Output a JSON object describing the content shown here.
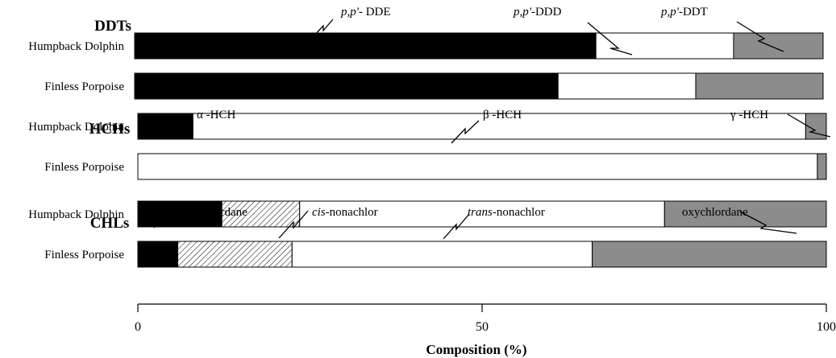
{
  "chart_data": {
    "type": "bar",
    "orientation": "horizontal",
    "stacked": true,
    "xlabel": "Composition (%)",
    "xlim": [
      0,
      100
    ],
    "xticks": [
      "0",
      "50",
      "100"
    ],
    "fill_styles": {
      "black": "#000000",
      "white": "#ffffff",
      "gray": "#8c8c8c",
      "hatched": "hatch"
    },
    "groups": [
      {
        "name": "DDTs",
        "segments": [
          {
            "name_parts": [
              {
                "t": "p,p'",
                "i": true
              },
              {
                "t": "- DDE",
                "i": false
              }
            ],
            "fill": "black"
          },
          {
            "name_parts": [
              {
                "t": "p,p'",
                "i": true
              },
              {
                "t": "-DDD",
                "i": false
              }
            ],
            "fill": "white"
          },
          {
            "name_parts": [
              {
                "t": "p,p'",
                "i": true
              },
              {
                "t": "-DDT",
                "i": false
              }
            ],
            "fill": "gray"
          }
        ],
        "rows": [
          {
            "label": "Humpback Dolphin",
            "values": [
              67,
              20,
              13
            ]
          },
          {
            "label": "Finless Porpoise",
            "values": [
              61.5,
              20,
              18.5
            ]
          }
        ]
      },
      {
        "name": "HCHs",
        "segments": [
          {
            "name_parts": [
              {
                "t": "α -HCH",
                "i": false
              }
            ],
            "fill": "black"
          },
          {
            "name_parts": [
              {
                "t": "β -HCH",
                "i": false
              }
            ],
            "fill": "white"
          },
          {
            "name_parts": [
              {
                "t": "γ -HCH",
                "i": false
              }
            ],
            "fill": "gray"
          }
        ],
        "rows": [
          {
            "label": "Humpback Dolphin",
            "values": [
              8,
              89,
              3
            ]
          },
          {
            "label": "Finless Porpoise",
            "values": [
              0,
              98.7,
              1.3
            ]
          }
        ]
      },
      {
        "name": "CHLs",
        "segments": [
          {
            "name_parts": [
              {
                "t": "cis",
                "i": true
              },
              {
                "t": "-chlordane",
                "i": false
              }
            ],
            "fill": "black"
          },
          {
            "name_parts": [
              {
                "t": "cis",
                "i": true
              },
              {
                "t": "-nonachlor",
                "i": false
              }
            ],
            "fill": "hatched"
          },
          {
            "name_parts": [
              {
                "t": "trans",
                "i": true
              },
              {
                "t": "-nonachlor",
                "i": false
              }
            ],
            "fill": "white"
          },
          {
            "name_parts": [
              {
                "t": "oxychlordane",
                "i": false
              }
            ],
            "fill": "gray"
          }
        ],
        "rows": [
          {
            "label": "Humpback Dolphin",
            "values": [
              12.2,
              11.3,
              53,
              23.5
            ]
          },
          {
            "label": "Finless Porpoise",
            "values": [
              5.8,
              16.6,
              43.6,
              34
            ]
          }
        ]
      }
    ]
  }
}
